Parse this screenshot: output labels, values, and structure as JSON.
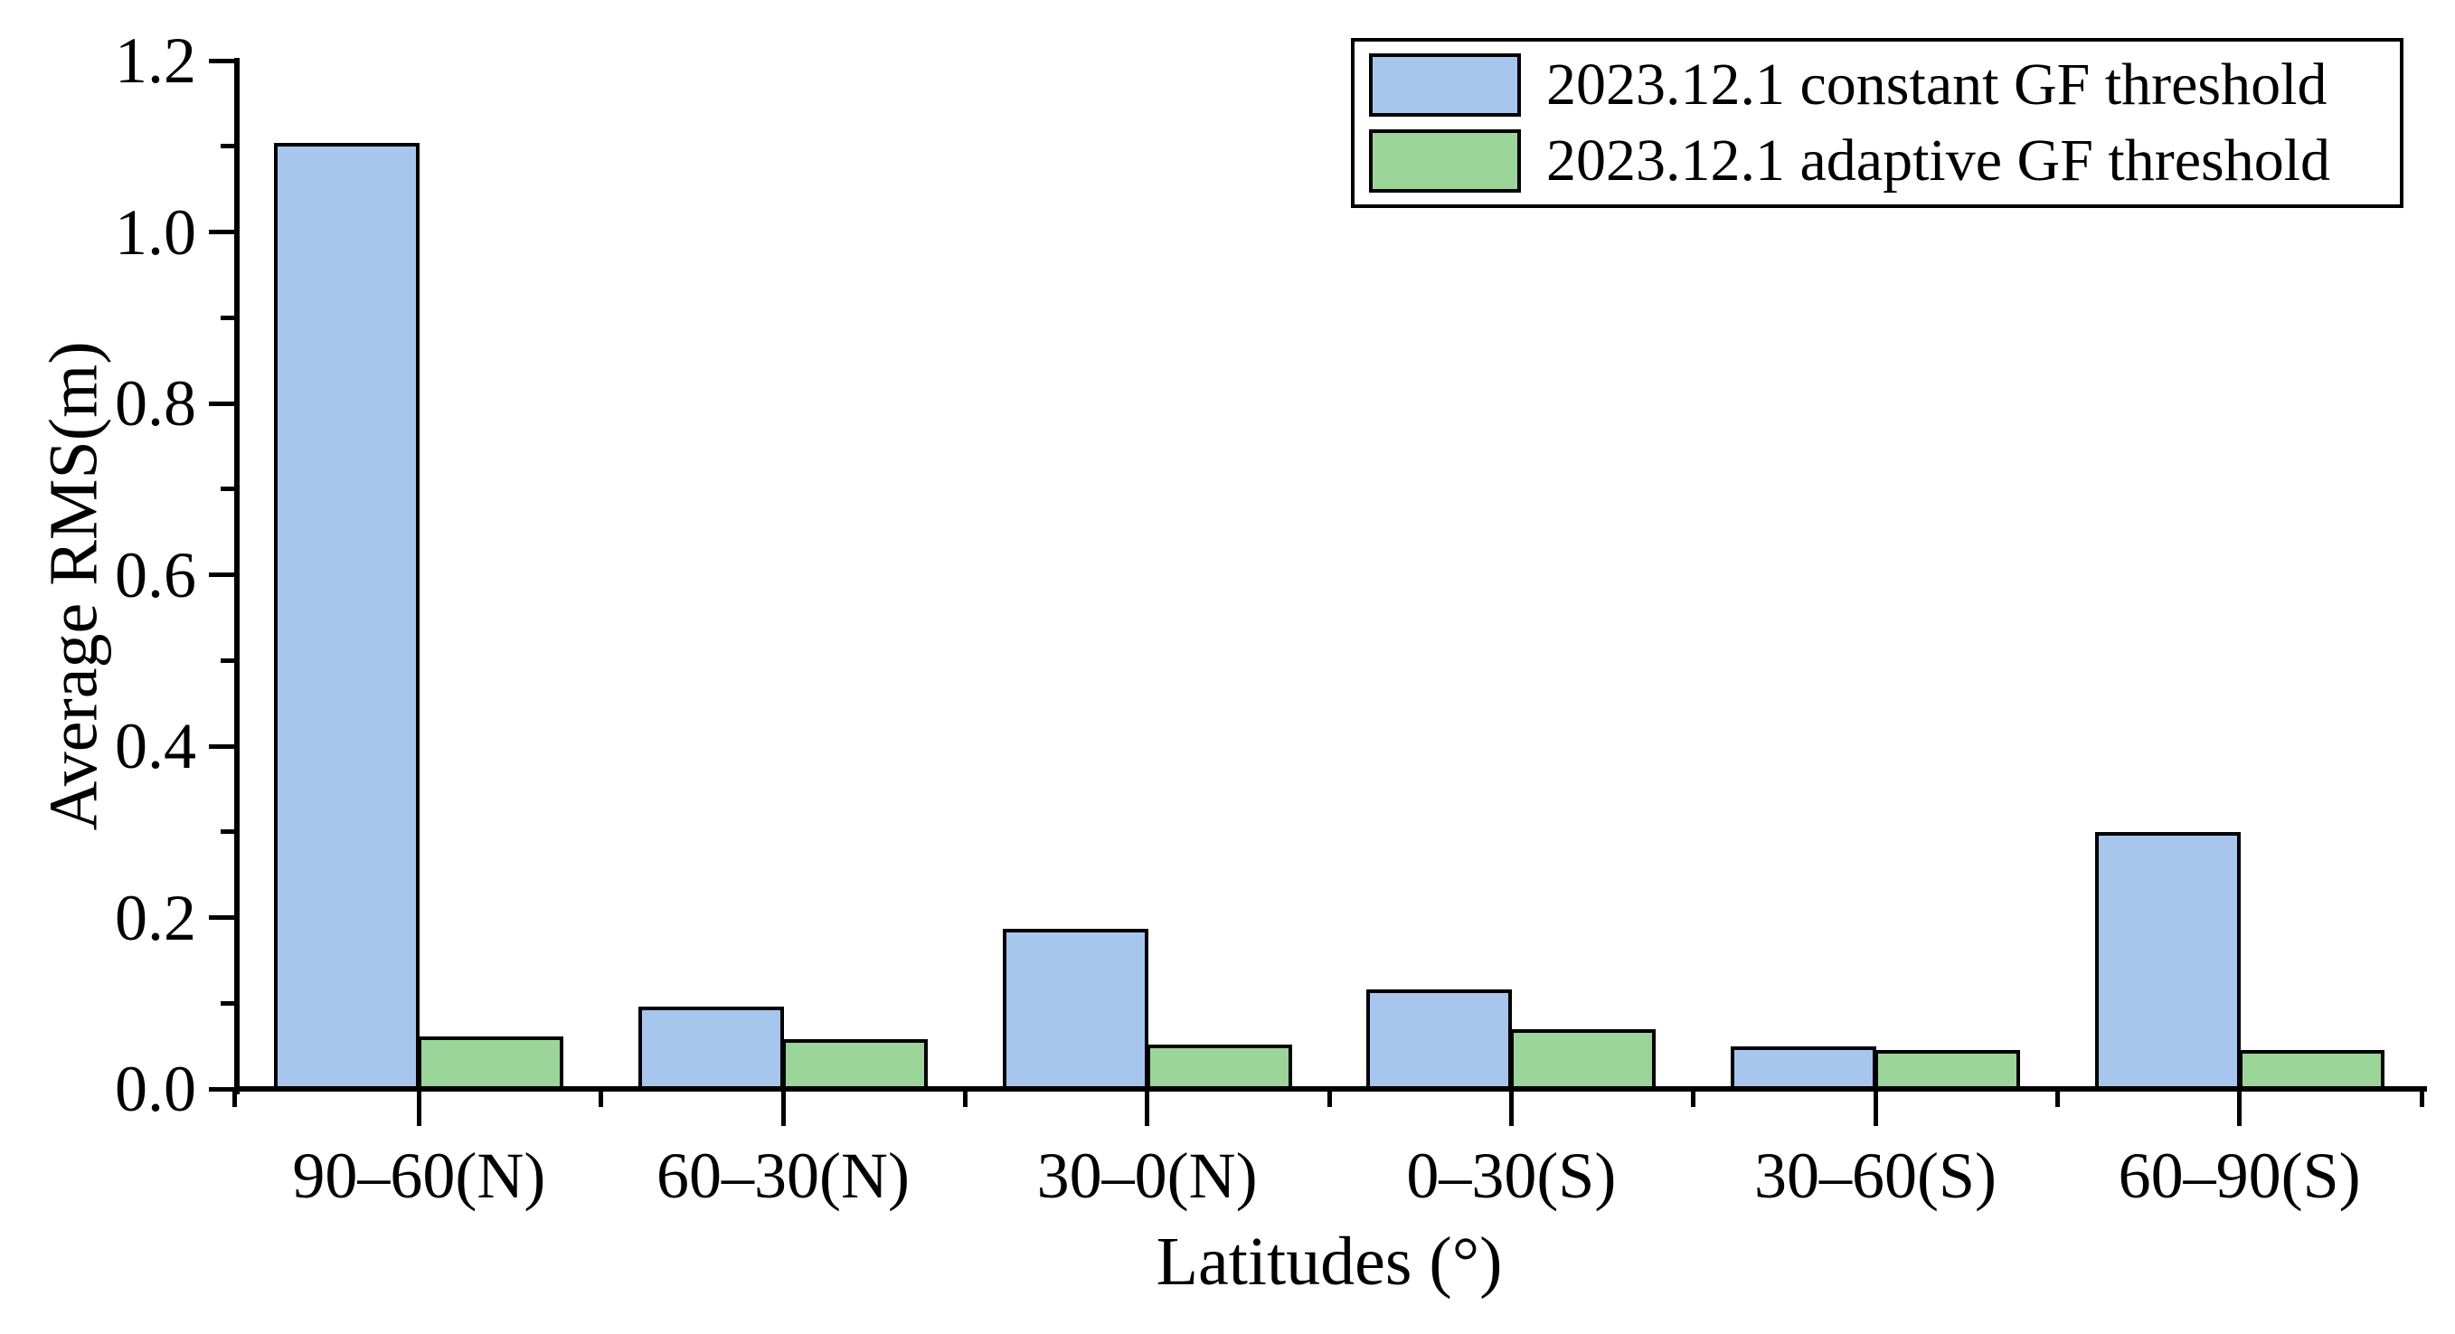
{
  "chart_data": {
    "type": "bar",
    "title": "",
    "xlabel": "Latitudes (°)",
    "ylabel": "Average RMS(m)",
    "categories": [
      "90–60(N)",
      "60–30(N)",
      "30–0(N)",
      "0–30(S)",
      "30–60(S)",
      "60–90(S)"
    ],
    "series": [
      {
        "name": "2023.12.1 constant GF threshold",
        "color": "#a6c6ee",
        "values": [
          1.107,
          0.099,
          0.19,
          0.119,
          0.053,
          0.303
        ]
      },
      {
        "name": "2023.12.1 adaptive GF threshold",
        "color": "#9cd59a",
        "values": [
          0.064,
          0.061,
          0.055,
          0.073,
          0.049,
          0.049
        ]
      }
    ],
    "ylim": [
      0.0,
      1.2
    ],
    "y_major_ticks": [
      0.0,
      0.2,
      0.4,
      0.6,
      0.8,
      1.0,
      1.2
    ],
    "y_tick_labels": [
      "0.0",
      "0.2",
      "0.4",
      "0.6",
      "0.8",
      "1.0",
      "1.2"
    ],
    "y_minor_tick_step": 0.1,
    "bar_outline_color": "#000000",
    "grid": false,
    "legend_position": "top-right"
  }
}
